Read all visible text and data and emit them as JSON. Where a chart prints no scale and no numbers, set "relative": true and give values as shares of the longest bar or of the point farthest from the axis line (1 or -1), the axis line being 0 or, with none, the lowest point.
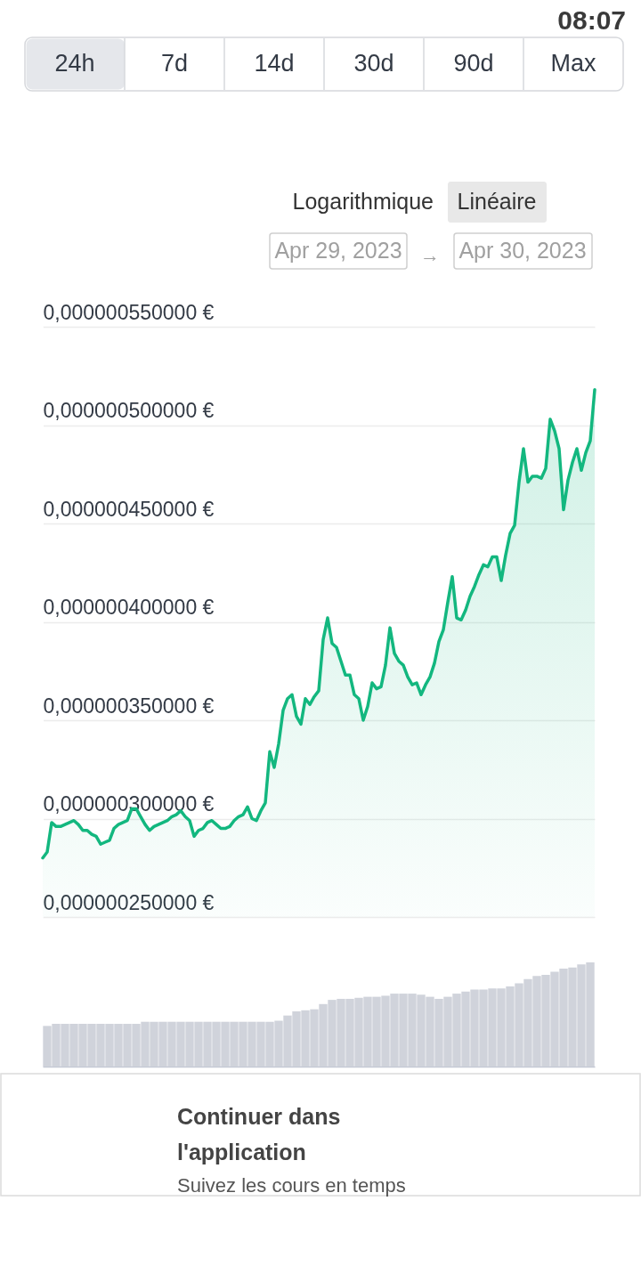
{
  "chart_data": [
    {
      "type": "other",
      "annotations": [
        "08:07",
        "24h",
        "7d",
        "14d",
        "30d",
        "90d",
        "Max",
        "Logarithmique",
        "Linéaire",
        "Apr 29, 2023",
        "→",
        "Apr 30, 2023"
      ]
    },
    {
      "type": "area",
      "categories": [
        null,
        null,
        null,
        null,
        null,
        null,
        null,
        null,
        null,
        null,
        null,
        null,
        null,
        null,
        null,
        null,
        null,
        null,
        null,
        null,
        null,
        null,
        null,
        null,
        null,
        null,
        null,
        null,
        null,
        null,
        null,
        null,
        null,
        null,
        null,
        null,
        null,
        null,
        null,
        null,
        null,
        null,
        null,
        null,
        null,
        null,
        null,
        null,
        null,
        null,
        null,
        null,
        null,
        null,
        null,
        null,
        null,
        null,
        null,
        null,
        null,
        null,
        null,
        null,
        null,
        null,
        null,
        null,
        null,
        null,
        null,
        null,
        null,
        null,
        null,
        null,
        null,
        null,
        null,
        null,
        null,
        null,
        null,
        null,
        null,
        null,
        null,
        null,
        null,
        null,
        null,
        null,
        null,
        null,
        null,
        null,
        null,
        null,
        null,
        null,
        null,
        null,
        null,
        null,
        null,
        null,
        null,
        null,
        null,
        null,
        null,
        null,
        null,
        null,
        null,
        null,
        null,
        null,
        null,
        null,
        null,
        null,
        null,
        null,
        null
      ],
      "values": [
        2.8e-07,
        2.83e-07,
        2.98e-07,
        2.96e-07,
        2.96e-07,
        2.97e-07,
        2.98e-07,
        2.99e-07,
        2.97e-07,
        2.94e-07,
        2.94e-07,
        2.92e-07,
        2.91e-07,
        2.87e-07,
        2.88e-07,
        2.89e-07,
        2.95e-07,
        2.97e-07,
        2.98e-07,
        2.99e-07,
        3.05e-07,
        3.05e-07,
        3.01e-07,
        2.97e-07,
        2.94e-07,
        2.96e-07,
        2.97e-07,
        2.98e-07,
        2.99e-07,
        3.01e-07,
        3.02e-07,
        3.04e-07,
        3.01e-07,
        2.99e-07,
        2.91e-07,
        2.94e-07,
        2.95e-07,
        2.98e-07,
        2.99e-07,
        2.97e-07,
        2.95e-07,
        2.95e-07,
        2.96e-07,
        2.99e-07,
        3.01e-07,
        3.02e-07,
        3.06e-07,
        3e-07,
        2.99e-07,
        3.04e-07,
        3.08e-07,
        3.34e-07,
        3.26e-07,
        3.38e-07,
        3.55e-07,
        3.61e-07,
        3.63e-07,
        3.52e-07,
        3.48e-07,
        3.61e-07,
        3.58e-07,
        3.62e-07,
        3.65e-07,
        3.91e-07,
        4.02e-07,
        3.89e-07,
        3.87e-07,
        3.8e-07,
        3.73e-07,
        3.73e-07,
        3.63e-07,
        3.61e-07,
        3.5e-07,
        3.57e-07,
        3.69e-07,
        3.66e-07,
        3.67e-07,
        3.78e-07,
        3.97e-07,
        3.84e-07,
        3.8e-07,
        3.78e-07,
        3.72e-07,
        3.68e-07,
        3.69e-07,
        3.63e-07,
        3.68e-07,
        3.72e-07,
        3.79e-07,
        3.9e-07,
        3.96e-07,
        4.1e-07,
        4.23e-07,
        4.02e-07,
        4.01e-07,
        4.06e-07,
        4.13e-07,
        4.18e-07,
        4.24e-07,
        4.29e-07,
        4.28e-07,
        4.33e-07,
        4.33e-07,
        4.21e-07,
        4.34e-07,
        4.45e-07,
        4.49e-07,
        4.71e-07,
        4.88e-07,
        4.71e-07,
        4.74e-07,
        4.74e-07,
        4.73e-07,
        4.78e-07,
        5.03e-07,
        4.97e-07,
        4.88e-07,
        4.57e-07,
        4.72e-07,
        4.81e-07,
        4.88e-07,
        4.77e-07,
        4.86e-07,
        4.92e-07,
        5.18e-07
      ],
      "color": "#13b77f",
      "ylim": [
        2.5e-07,
        5.5e-07
      ],
      "yticks": [
        {
          "value": 2.5e-07,
          "label": "0,000000250000 €"
        },
        {
          "value": 3e-07,
          "label": "0,000000300000 €"
        },
        {
          "value": 3.5e-07,
          "label": "0,000000350000 €"
        },
        {
          "value": 4e-07,
          "label": "0,000000400000 €"
        },
        {
          "value": 4.5e-07,
          "label": "0,000000450000 €"
        },
        {
          "value": 5e-07,
          "label": "0,000000500000 €"
        },
        {
          "value": 5.5e-07,
          "label": "0,000000550000 €"
        }
      ],
      "grid": "y",
      "tick_labels": "y",
      "line_style": "solid"
    },
    {
      "type": "bar",
      "categories": [
        null,
        null,
        null,
        null,
        null,
        null,
        null,
        null,
        null,
        null,
        null,
        null,
        null,
        null,
        null,
        null,
        null,
        null,
        null,
        null,
        null,
        null,
        null,
        null,
        null,
        null,
        null,
        null,
        null,
        null,
        null,
        null,
        null,
        null,
        null,
        null,
        null,
        null,
        null,
        null,
        null,
        null,
        null,
        null,
        null,
        null,
        null,
        null,
        null,
        null,
        null,
        null,
        null,
        null,
        null,
        null,
        null,
        null,
        null,
        null,
        null,
        null
      ],
      "values": [
        0.39,
        0.41,
        0.41,
        0.41,
        0.41,
        0.41,
        0.41,
        0.41,
        0.41,
        0.41,
        0.41,
        0.43,
        0.43,
        0.43,
        0.43,
        0.43,
        0.43,
        0.43,
        0.43,
        0.43,
        0.43,
        0.43,
        0.43,
        0.43,
        0.43,
        0.43,
        0.44,
        0.49,
        0.53,
        0.54,
        0.55,
        0.6,
        0.64,
        0.65,
        0.65,
        0.66,
        0.67,
        0.67,
        0.68,
        0.7,
        0.7,
        0.7,
        0.69,
        0.67,
        0.65,
        0.67,
        0.7,
        0.72,
        0.74,
        0.74,
        0.75,
        0.75,
        0.77,
        0.8,
        0.84,
        0.87,
        0.88,
        0.91,
        0.94,
        0.95,
        0.98,
        1
      ],
      "color": "#d0d3db",
      "relative": true
    },
    {
      "type": "other",
      "annotations": [
        "Continuer dans l'application",
        "Suivez les cours en temps"
      ]
    }
  ]
}
